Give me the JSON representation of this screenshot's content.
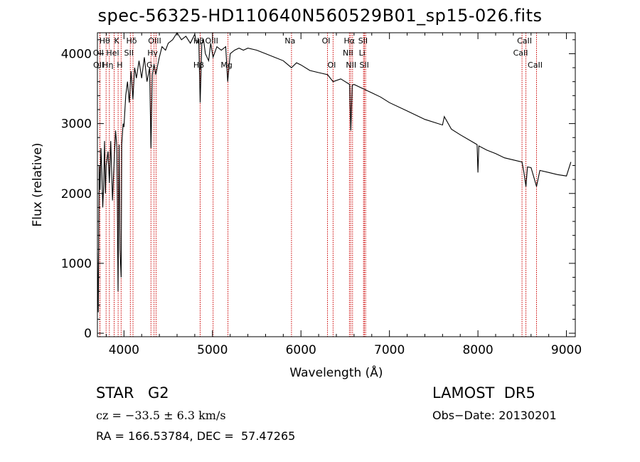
{
  "chart_data": {
    "type": "line",
    "title": "spec-56325-HD110640N560529B01_sp15-026.fits",
    "xlabel": "Wavelength (Å)",
    "ylabel": "Flux (relative)",
    "xlim": [
      3700,
      9100
    ],
    "ylim": [
      -50,
      4300
    ],
    "xticks": [
      4000,
      5000,
      6000,
      7000,
      8000,
      9000
    ],
    "yticks": [
      0,
      1000,
      2000,
      3000,
      4000
    ],
    "series": [
      {
        "x": [
          3700,
          3710,
          3720,
          3730,
          3740,
          3750,
          3760,
          3770,
          3780,
          3790,
          3800,
          3820,
          3835,
          3850,
          3870,
          3889,
          3905,
          3920,
          3933,
          3945,
          3955,
          3968,
          3975,
          3990,
          4000,
          4020,
          4040,
          4060,
          4080,
          4101,
          4120,
          4140,
          4170,
          4200,
          4230,
          4260,
          4290,
          4305,
          4320,
          4340,
          4360,
          4383,
          4400,
          4430,
          4470,
          4500,
          4550,
          4600,
          4650,
          4700,
          4750,
          4800,
          4820,
          4845,
          4861,
          4880,
          4900,
          4920,
          4957,
          4980,
          5007,
          5050,
          5100,
          5150,
          5172,
          5200,
          5250,
          5300,
          5350,
          5400,
          5500,
          5600,
          5700,
          5800,
          5893,
          5950,
          6000,
          6100,
          6200,
          6300,
          6363,
          6450,
          6500,
          6550,
          6563,
          6580,
          6600,
          6700,
          6800,
          6900,
          7000,
          7200,
          7400,
          7600,
          7620,
          7700,
          7800,
          7990,
          8000,
          8010,
          8100,
          8200,
          8300,
          8400,
          8498,
          8520,
          8542,
          8560,
          8600,
          8662,
          8700,
          8800,
          8900,
          9000,
          9050
        ],
        "y": [
          1150,
          300,
          2400,
          2050,
          2650,
          2300,
          1800,
          2100,
          2750,
          2000,
          2400,
          2600,
          2150,
          2750,
          1900,
          2450,
          2900,
          2650,
          600,
          2700,
          1200,
          800,
          2700,
          3000,
          2950,
          3400,
          3600,
          3300,
          3750,
          3350,
          3800,
          3650,
          3900,
          3650,
          3950,
          3600,
          3800,
          2650,
          3700,
          3850,
          3700,
          3850,
          3950,
          4100,
          4050,
          4150,
          4200,
          4300,
          4200,
          4250,
          4150,
          4280,
          4150,
          4200,
          3300,
          4150,
          4200,
          4000,
          3900,
          4150,
          3950,
          4100,
          4050,
          4100,
          3600,
          4000,
          4050,
          4080,
          4050,
          4080,
          4050,
          4000,
          3950,
          3900,
          3800,
          3870,
          3840,
          3760,
          3730,
          3700,
          3600,
          3640,
          3600,
          3560,
          2900,
          3550,
          3560,
          3500,
          3440,
          3380,
          3300,
          3180,
          3060,
          2980,
          3100,
          2920,
          2840,
          2700,
          2300,
          2680,
          2620,
          2570,
          2510,
          2480,
          2450,
          2300,
          2100,
          2380,
          2370,
          2100,
          2330,
          2300,
          2270,
          2250,
          2450
        ]
      }
    ],
    "line_color": "#000000",
    "marker_color": "#cc0000",
    "line_markers": [
      {
        "label": "Hθ",
        "wavelength": 3798,
        "row": 1
      },
      {
        "label": "K",
        "wavelength": 3934,
        "row": 1
      },
      {
        "label": "Hδ",
        "wavelength": 4102,
        "row": 1
      },
      {
        "label": "OIII",
        "wavelength": 4363,
        "row": 1
      },
      {
        "label": "Hβ",
        "wavelength": 4861,
        "row": 1
      },
      {
        "label": "OIII",
        "wavelength": 5007,
        "row": 1
      },
      {
        "label": "OI",
        "wavelength": 6300,
        "row": 1
      },
      {
        "label": "Hα",
        "wavelength": 6563,
        "row": 1
      },
      {
        "label": "SII",
        "wavelength": 6717,
        "row": 1
      },
      {
        "label": "CaII",
        "wavelength": 8542,
        "row": 1
      },
      {
        "label": "OII",
        "wavelength": 3727,
        "row": 2
      },
      {
        "label": "HeI",
        "wavelength": 3889,
        "row": 2
      },
      {
        "label": "SII",
        "wavelength": 4072,
        "row": 2
      },
      {
        "label": "Hγ",
        "wavelength": 4340,
        "row": 2
      },
      {
        "label": "NII",
        "wavelength": 6548,
        "row": 2
      },
      {
        "label": "Li",
        "wavelength": 6707,
        "row": 2
      },
      {
        "label": "CaII",
        "wavelength": 8498,
        "row": 2
      },
      {
        "label": "OII",
        "wavelength": 3729,
        "row": 3
      },
      {
        "label": "Hη",
        "wavelength": 3835,
        "row": 3
      },
      {
        "label": "H",
        "wavelength": 3968,
        "row": 3
      },
      {
        "label": "G",
        "wavelength": 4305,
        "row": 3
      },
      {
        "label": "Hβ",
        "wavelength": 4861,
        "row": 3
      },
      {
        "label": "Mg",
        "wavelength": 5175,
        "row": 3
      },
      {
        "label": "Na",
        "wavelength": 5893,
        "row": 1
      },
      {
        "label": "OI",
        "wavelength": 6363,
        "row": 3
      },
      {
        "label": "NII",
        "wavelength": 6583,
        "row": 3
      },
      {
        "label": "SII",
        "wavelength": 6731,
        "row": 3
      },
      {
        "label": "CaII",
        "wavelength": 8662,
        "row": 3
      }
    ]
  },
  "footer": {
    "class": "STAR",
    "subclass": "G2",
    "cz": "cz = −33.5 ± 6.3 km/s",
    "radec": "RA = 166.53784, DEC =  57.47265",
    "survey": "LAMOST  DR5",
    "obs_date": "Obs−Date: 20130201"
  }
}
